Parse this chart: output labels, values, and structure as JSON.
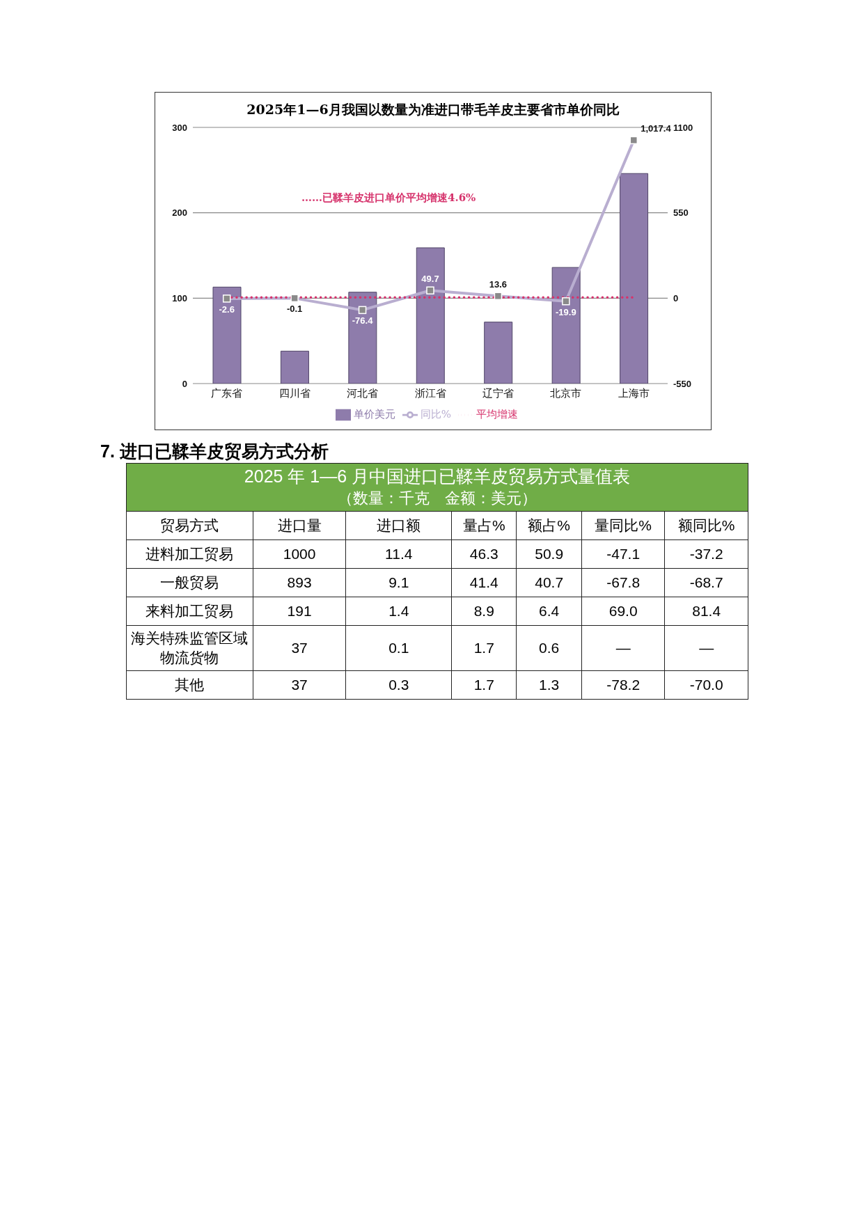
{
  "chart_data": [
    {
      "type": "bar",
      "title": "2025年1—6月我国以数量为准进口带毛羊皮主要省市单价同比",
      "categories": [
        "广东省",
        "四川省",
        "河北省",
        "浙江省",
        "辽宁省",
        "北京市",
        "上海市"
      ],
      "series": [
        {
          "name": "单价美元",
          "type": "bar",
          "color": "#8e7cab",
          "values": [
            113,
            38,
            107,
            159,
            72,
            136,
            246
          ]
        },
        {
          "name": "同比%",
          "type": "line",
          "axis": "y2",
          "color": "#b9aed0",
          "marker": "square",
          "line_style": "solid",
          "values": [
            -2.6,
            -0.1,
            -76.4,
            49.7,
            13.6,
            -19.9,
            1017.4
          ],
          "value_labels": [
            "-2.6",
            "-0.1",
            "-76.4",
            "49.7",
            "13.6",
            "-19.9",
            "1,017.4"
          ]
        },
        {
          "name": "平均增速",
          "type": "line",
          "axis": "y2",
          "color": "#d6336c",
          "marker": "none",
          "line_style": "dotted",
          "values": [
            4.6,
            4.6,
            4.6,
            4.6,
            4.6,
            4.6,
            4.6
          ]
        }
      ],
      "ylim": [
        0,
        300
      ],
      "yticks": [
        0,
        100,
        200,
        300
      ],
      "y2lim": [
        -550,
        1100
      ],
      "y2ticks": [
        -550,
        0,
        550,
        1100
      ],
      "grid": "y",
      "legend": "bottom",
      "annotations": [
        "……已鞣羊皮进口单价平均增速4.6%"
      ]
    },
    {
      "type": "other",
      "title": "7. 进口已鞣羊皮贸易方式分析",
      "subtitle": "2025 年 1—6 月中国进口已鞣羊皮贸易方式量值表",
      "annotations": [
        "（数量：千克　金额：美元）"
      ],
      "categories": [
        "贸易方式",
        "进口量",
        "进口额",
        "量占%",
        "额占%",
        "量同比%",
        "额同比%"
      ],
      "y_categories": [
        "进料加工贸易",
        "一般贸易",
        "来料加工贸易",
        "海关特殊监管区域物流货物",
        "其他"
      ],
      "cell_labels": [
        [
          "1000",
          "11.4",
          "46.3",
          "50.9",
          "-47.1",
          "-37.2"
        ],
        [
          "893",
          "9.1",
          "41.4",
          "40.7",
          "-67.8",
          "-68.7"
        ],
        [
          "191",
          "1.4",
          "8.9",
          "6.4",
          "69.0",
          "81.4"
        ],
        [
          "37",
          "0.1",
          "1.7",
          "0.6",
          "—",
          "—"
        ],
        [
          "37",
          "0.3",
          "1.7",
          "1.3",
          "-78.2",
          "-70.0"
        ]
      ]
    }
  ]
}
